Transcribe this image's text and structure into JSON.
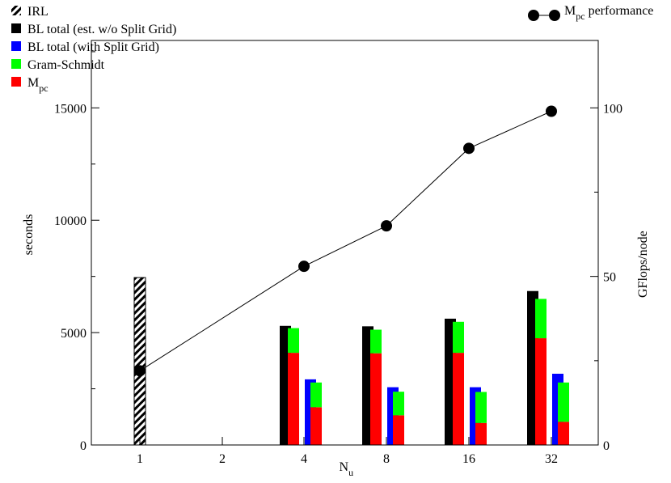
{
  "chart_data": {
    "type": "bar",
    "xlabel": "N",
    "xlabel_sub": "u",
    "ylabel": "seconds",
    "y2label": "GFlops/node",
    "categories": [
      "1",
      "2",
      "4",
      "8",
      "16",
      "32"
    ],
    "ylim": [
      0,
      18000
    ],
    "yticks": [
      0,
      5000,
      10000,
      15000
    ],
    "y2lim": [
      0,
      120
    ],
    "y2ticks": [
      0,
      50,
      100
    ],
    "legend_position": "top-left",
    "legend": [
      {
        "key": "irl",
        "label": "IRL",
        "sub": "",
        "pattern": "hatch",
        "color": "#000000"
      },
      {
        "key": "bl_wo",
        "label": "BL total (est. w/o Split Grid)",
        "sub": "",
        "color": "#000000"
      },
      {
        "key": "bl_with",
        "label": "BL total (with Split Grid)",
        "sub": "",
        "color": "#0000ff"
      },
      {
        "key": "gs",
        "label": "Gram-Schmidt",
        "sub": "",
        "color": "#00ff00"
      },
      {
        "key": "mpc",
        "label": "M",
        "sub": "pc",
        "color": "#ff0000"
      }
    ],
    "line_legend": {
      "label": "M",
      "sub": "pc",
      "suffix": " performance",
      "position": "top-right"
    },
    "series": [
      {
        "key": "irl",
        "values": [
          7450,
          null,
          null,
          null,
          null,
          null
        ]
      },
      {
        "key": "bl_wo",
        "values": [
          null,
          null,
          5300,
          5280,
          5620,
          6850
        ]
      },
      {
        "key": "gs_wo",
        "values": [
          null,
          null,
          1100,
          1050,
          1380,
          1750
        ]
      },
      {
        "key": "mpc_wo",
        "values": [
          null,
          null,
          4100,
          4080,
          4100,
          4750
        ]
      },
      {
        "key": "bl_with",
        "values": [
          null,
          null,
          2920,
          2570,
          2570,
          3170
        ]
      },
      {
        "key": "gs_with",
        "values": [
          null,
          null,
          1100,
          1050,
          1380,
          1750
        ]
      },
      {
        "key": "mpc_with",
        "values": [
          null,
          null,
          1680,
          1320,
          980,
          1030
        ]
      }
    ],
    "performance": {
      "x": [
        "1",
        "4",
        "8",
        "16",
        "32"
      ],
      "values": [
        22,
        53,
        65,
        88,
        99
      ]
    }
  }
}
